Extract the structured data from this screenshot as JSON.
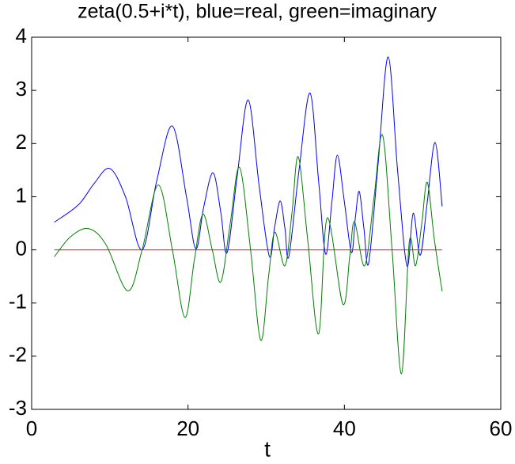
{
  "chart_data": {
    "type": "line",
    "title": "zeta(0.5+i*t), blue=real, green=imaginary",
    "x_label": "t",
    "xlim": [
      0,
      60
    ],
    "xticks": [
      0,
      20,
      40,
      60
    ],
    "ylim": [
      -3,
      4
    ],
    "yticks": [
      -3,
      -2,
      -1,
      0,
      1,
      2,
      3,
      4
    ],
    "series": [
      {
        "color": "#0000ff",
        "x": [
          2.9,
          6,
          8,
          10,
          12,
          14.13,
          16,
          18,
          19.8,
          21,
          22,
          23.2,
          24.2,
          25,
          26.3,
          27.7,
          29.1,
          30.4,
          31.1,
          31.8,
          32.4,
          32.9,
          34.2,
          35.6,
          36.7,
          37.6,
          38.4,
          39.1,
          40,
          40.9,
          41.4,
          41.9,
          42.5,
          43.1,
          44.3,
          45.6,
          46.8,
          48.0,
          48.8,
          49.7,
          50.6,
          51.6,
          52.5
        ],
        "values": [
          0.52,
          0.85,
          1.25,
          1.53,
          1.0,
          0,
          1.3,
          2.33,
          1.0,
          0.02,
          0.8,
          1.45,
          0.7,
          -0.05,
          1.4,
          2.82,
          1.2,
          -0.12,
          0.45,
          0.92,
          0.4,
          -0.12,
          1.5,
          2.95,
          1.3,
          -0.08,
          0.9,
          1.78,
          0.9,
          -0.05,
          0.6,
          1.1,
          0.4,
          -0.25,
          1.6,
          3.63,
          1.5,
          -0.3,
          0.69,
          -0.1,
          0.9,
          2.02,
          0.82
        ]
      },
      {
        "color": "#008000",
        "x": [
          2.9,
          5,
          7.3,
          9.5,
          12.3,
          14.13,
          16.2,
          18,
          19.6,
          20.8,
          21.9,
          23.1,
          24.2,
          25.4,
          26.6,
          28,
          29.3,
          30.3,
          31.1,
          32.4,
          33.3,
          34.1,
          35.3,
          36.7,
          37.8,
          39.8,
          40.7,
          41.3,
          42.6,
          43.8,
          44.9,
          46.1,
          47.3,
          48.3,
          49.1,
          49.9,
          50.6,
          51.5,
          52.5
        ],
        "values": [
          -0.13,
          0.25,
          0.4,
          0.1,
          -0.77,
          0,
          1.22,
          0,
          -1.27,
          -0.2,
          0.67,
          0,
          -0.6,
          0.5,
          1.55,
          0,
          -1.7,
          -0.5,
          0.33,
          -0.3,
          0.7,
          1.75,
          0.2,
          -1.58,
          0.6,
          -1.02,
          -0.1,
          0.53,
          -0.3,
          1.0,
          2.15,
          0,
          -2.33,
          0.15,
          -0.3,
          0.5,
          1.27,
          0.2,
          -0.78
        ]
      },
      {
        "color": "#ff0000",
        "x": [
          2.9,
          52.5
        ],
        "values": [
          0,
          0
        ]
      }
    ]
  }
}
